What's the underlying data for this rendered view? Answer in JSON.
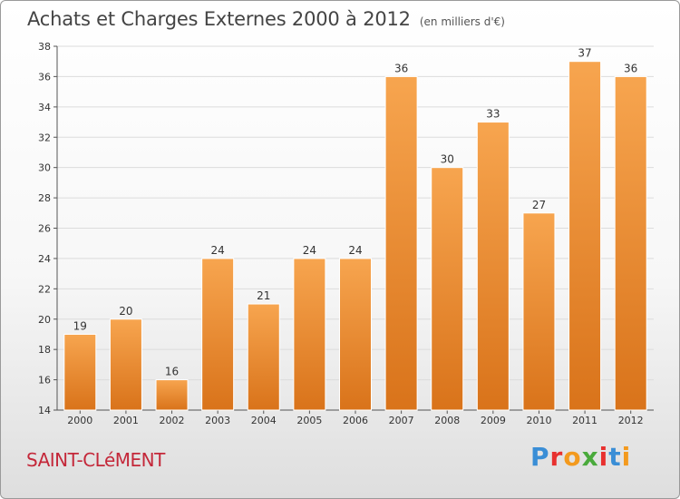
{
  "header": {
    "title": "Achats et Charges Externes 2000 à 2012",
    "subtitle": "(en milliers d'€)"
  },
  "footer": {
    "location": "SAINT-CLéMENT",
    "logo_text": "Proxiti",
    "logo_colors": [
      "#3a8ed6",
      "#e8312f",
      "#f39a1e",
      "#4aaa3c",
      "#e8312f",
      "#3a8ed6",
      "#f39a1e"
    ]
  },
  "colors": {
    "bar_light": "#f7a54f",
    "bar_dark": "#d9731a",
    "grid": "#dcdcdc",
    "axis": "#555555"
  },
  "chart_data": {
    "type": "bar",
    "title": "Achats et Charges Externes 2000 à 2012",
    "subtitle": "(en milliers d'€)",
    "categories": [
      "2000",
      "2001",
      "2002",
      "2003",
      "2004",
      "2005",
      "2006",
      "2007",
      "2008",
      "2009",
      "2010",
      "2011",
      "2012"
    ],
    "values": [
      19,
      20,
      16,
      24,
      21,
      24,
      24,
      36,
      30,
      33,
      27,
      37,
      36
    ],
    "ylim": [
      14,
      38
    ],
    "yticks": [
      14,
      16,
      18,
      20,
      22,
      24,
      26,
      28,
      30,
      32,
      34,
      36,
      38
    ],
    "grid": true,
    "xlabel": "",
    "ylabel": ""
  }
}
